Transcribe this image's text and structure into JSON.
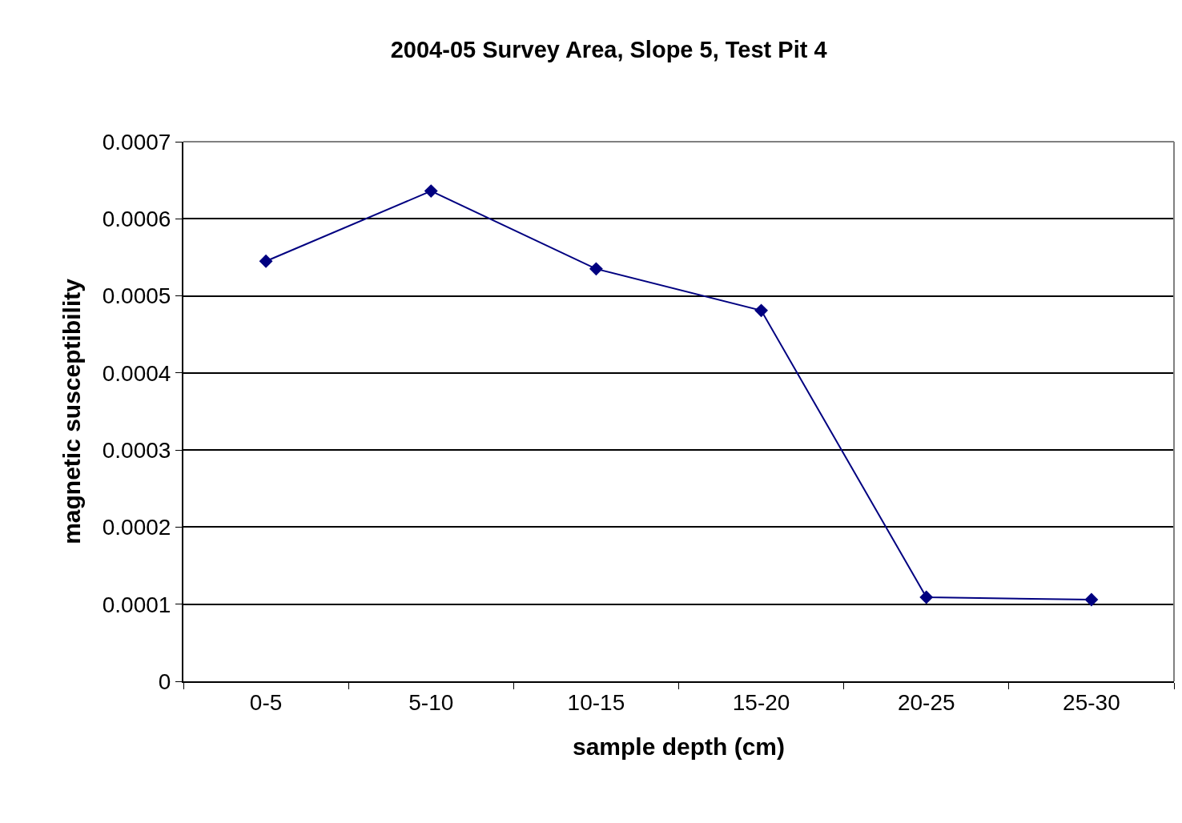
{
  "chart_data": {
    "type": "line",
    "title": "2004-05 Survey Area, Slope 5, Test Pit 4",
    "xlabel": "sample depth (cm)",
    "ylabel": "magnetic susceptibility",
    "categories": [
      "0-5",
      "5-10",
      "10-15",
      "15-20",
      "20-25",
      "25-30"
    ],
    "series": [
      {
        "color": "#000080",
        "values": [
          0.000545,
          0.000636,
          0.000535,
          0.000481,
          0.000109,
          0.000106
        ]
      }
    ],
    "ylim": [
      0,
      0.0007
    ],
    "yticks": [
      0,
      0.0001,
      0.0002,
      0.0003,
      0.0004,
      0.0005,
      0.0006,
      0.0007
    ],
    "grid": "y",
    "marker": "diamond",
    "line_style": "solid"
  }
}
